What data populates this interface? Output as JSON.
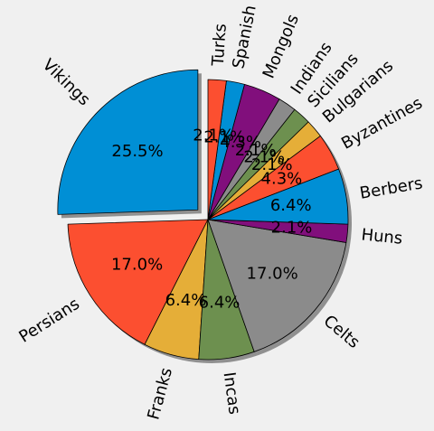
{
  "chart_data": {
    "type": "pie",
    "exploded": "Vikings",
    "shadow": true,
    "start_angle_deg": 90,
    "direction": "counterclockwise",
    "labels_rotated": true,
    "slices": [
      {
        "label": "Vikings",
        "value": 25.5,
        "pct_label": "25.5%",
        "color": "#008fd5"
      },
      {
        "label": "Persians",
        "value": 17.0,
        "pct_label": "17.0%",
        "color": "#fc4f30"
      },
      {
        "label": "Franks",
        "value": 6.4,
        "pct_label": "6.4%",
        "color": "#e5ae38"
      },
      {
        "label": "Incas",
        "value": 6.4,
        "pct_label": "6.4%",
        "color": "#6d904f"
      },
      {
        "label": "Celts",
        "value": 17.0,
        "pct_label": "17.0%",
        "color": "#8b8b8b"
      },
      {
        "label": "Huns",
        "value": 2.1,
        "pct_label": "2.1%",
        "color": "#810f7c"
      },
      {
        "label": "Berbers",
        "value": 6.4,
        "pct_label": "6.4%",
        "color": "#008fd5"
      },
      {
        "label": "Byzantines",
        "value": 4.3,
        "pct_label": "4.3%",
        "color": "#fc4f30"
      },
      {
        "label": "Bulgarians",
        "value": 2.1,
        "pct_label": "2.1%",
        "color": "#e5ae38"
      },
      {
        "label": "Sicilians",
        "value": 2.1,
        "pct_label": "2.1%",
        "color": "#6d904f"
      },
      {
        "label": "Indians",
        "value": 2.1,
        "pct_label": "2.1%",
        "color": "#8b8b8b"
      },
      {
        "label": "Mongols",
        "value": 4.3,
        "pct_label": "4.3%",
        "color": "#810f7c"
      },
      {
        "label": "Spanish",
        "value": 2.1,
        "pct_label": "2.1%",
        "color": "#008fd5"
      },
      {
        "label": "Turks",
        "value": 2.1,
        "pct_label": "2.1%",
        "color": "#fc4f30"
      }
    ]
  }
}
